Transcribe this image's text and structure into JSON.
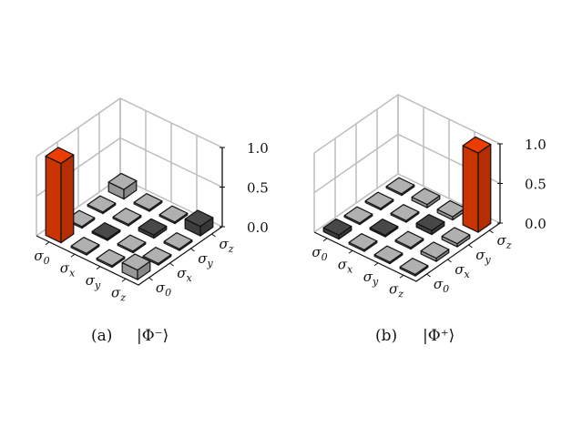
{
  "chart_data": [
    {
      "type": "bar3d",
      "caption_label": "(a)",
      "caption_state": "|Φ⁻⟩",
      "x_tick_labels": [
        "σ0",
        "σx",
        "σy",
        "σz"
      ],
      "y_tick_labels": [
        "σ0",
        "σx",
        "σy",
        "σz"
      ],
      "z_tick_labels": [
        "0.0",
        "0.5",
        "1.0"
      ],
      "zlim": [
        0,
        1
      ],
      "grid": true,
      "values": [
        [
          1.0,
          0.02,
          0.02,
          0.12
        ],
        [
          0.02,
          -0.02,
          0.02,
          0.02
        ],
        [
          0.02,
          0.02,
          -0.04,
          0.02
        ],
        [
          0.12,
          0.02,
          0.02,
          -0.12
        ]
      ]
    },
    {
      "type": "bar3d",
      "caption_label": "(b)",
      "caption_state": "|Φ⁺⟩",
      "x_tick_labels": [
        "σ0",
        "σx",
        "σy",
        "σz"
      ],
      "y_tick_labels": [
        "σ0",
        "σx",
        "σy",
        "σz"
      ],
      "z_tick_labels": [
        "0.0",
        "0.5",
        "1.0"
      ],
      "zlim": [
        0,
        1
      ],
      "grid": true,
      "values": [
        [
          -0.05,
          0.02,
          0.02,
          0.02
        ],
        [
          0.02,
          -0.02,
          0.02,
          0.04
        ],
        [
          0.02,
          0.02,
          -0.05,
          0.04
        ],
        [
          0.02,
          0.04,
          0.04,
          1.0
        ]
      ]
    }
  ],
  "colors": {
    "highlight": "#e03a00",
    "positive": "#a8a8a8",
    "negative": "#454545",
    "grid": "#bdbdbd"
  }
}
